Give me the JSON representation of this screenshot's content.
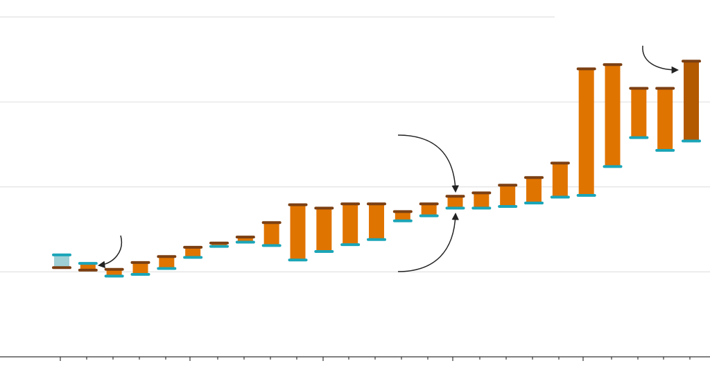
{
  "chart_data": {
    "type": "range",
    "start": [
      1.2,
      1.1,
      0.95,
      0.97,
      1.04,
      1.17,
      1.3,
      1.35,
      1.31,
      1.14,
      1.24,
      1.32,
      1.38,
      1.6,
      1.66,
      1.75,
      1.75,
      1.77,
      1.81,
      1.88,
      1.9,
      2.24,
      2.58,
      2.43,
      2.54
    ],
    "end": [
      1.05,
      1.02,
      1.03,
      1.11,
      1.18,
      1.29,
      1.34,
      1.41,
      1.58,
      1.79,
      1.75,
      1.8,
      1.8,
      1.71,
      1.8,
      1.89,
      1.93,
      2.02,
      2.11,
      2.28,
      3.39,
      3.44,
      3.16,
      3.16,
      3.48
    ],
    "ylim": [
      0,
      4.2
    ],
    "yticks": [
      1,
      2,
      3,
      4
    ],
    "grid": true,
    "color": "#e07400",
    "start_cap_color": "#1ba5b8",
    "end_cap_color": "#7b3f12",
    "first_bar_color": "#9fd0d6",
    "last_bar_color": "#b35900"
  }
}
